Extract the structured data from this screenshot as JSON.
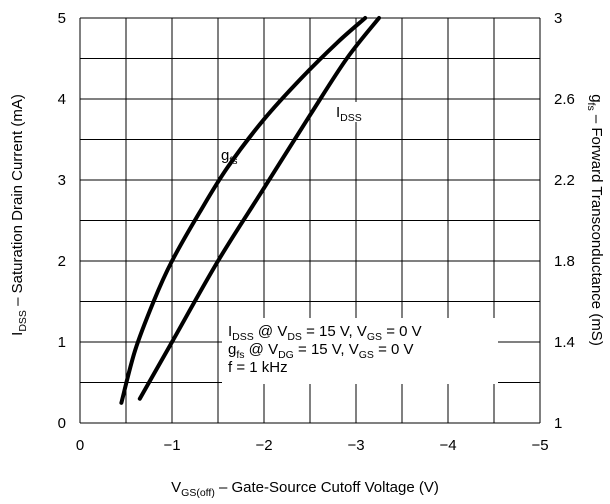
{
  "chart_data": {
    "type": "line",
    "x_axis": {
      "min": 0,
      "max": -5,
      "ticks": [
        0,
        -1,
        -2,
        -3,
        -4,
        -5
      ],
      "tick_labels": [
        "0",
        "−1",
        "−2",
        "−3",
        "−4",
        "−5"
      ],
      "label_main": "V",
      "label_sub": "GS(off)",
      "label_rest": " – Gate-Source Cutoff Voltage (V)"
    },
    "y_left": {
      "min": 0,
      "max": 5,
      "ticks": [
        0,
        1,
        2,
        3,
        4,
        5
      ],
      "tick_labels": [
        "0",
        "1",
        "2",
        "3",
        "4",
        "5"
      ],
      "label_main": "I",
      "label_sub": "DSS",
      "label_rest": " – Saturation Drain Current (mA)"
    },
    "y_right": {
      "min": 1,
      "max": 3,
      "ticks": [
        1,
        1.4,
        1.8,
        2.2,
        2.6,
        3
      ],
      "tick_labels": [
        "1",
        "1.4",
        "1.8",
        "2.2",
        "2.6",
        "3"
      ],
      "label_main": "g",
      "label_sub": "fs",
      "label_rest": " – Forward Transconductance (mS)"
    },
    "grid": true,
    "series": [
      {
        "name_main": "g",
        "name_sub": "fs",
        "axis": "right",
        "x": [
          -0.45,
          -0.6,
          -0.8,
          -1.0,
          -1.3,
          -1.6,
          -2.0,
          -2.4,
          -2.8,
          -3.1
        ],
        "y": [
          1.1,
          1.36,
          1.6,
          1.8,
          2.04,
          2.26,
          2.5,
          2.7,
          2.88,
          3.0
        ]
      },
      {
        "name_main": "I",
        "name_sub": "DSS",
        "axis": "left",
        "x": [
          -0.65,
          -1.0,
          -1.5,
          -2.0,
          -2.5,
          -2.9,
          -3.25
        ],
        "y": [
          0.3,
          1.0,
          2.0,
          2.9,
          3.8,
          4.5,
          5.0
        ]
      }
    ],
    "annotations": [
      {
        "parts": [
          [
            "I",
            ""
          ],
          [
            "DSS",
            "sub"
          ],
          [
            " @ V",
            ""
          ],
          [
            "DS",
            "sub"
          ],
          [
            " = 15 V, V",
            ""
          ],
          [
            "GS",
            "sub"
          ],
          [
            " = 0 V",
            ""
          ]
        ]
      },
      {
        "parts": [
          [
            "g",
            ""
          ],
          [
            "fs",
            "sub"
          ],
          [
            " @ V",
            ""
          ],
          [
            "DG",
            "sub"
          ],
          [
            " = 15 V, V",
            ""
          ],
          [
            "GS",
            "sub"
          ],
          [
            " = 0 V",
            ""
          ]
        ]
      },
      {
        "parts": [
          [
            "f = 1 kHz",
            ""
          ]
        ]
      }
    ]
  }
}
